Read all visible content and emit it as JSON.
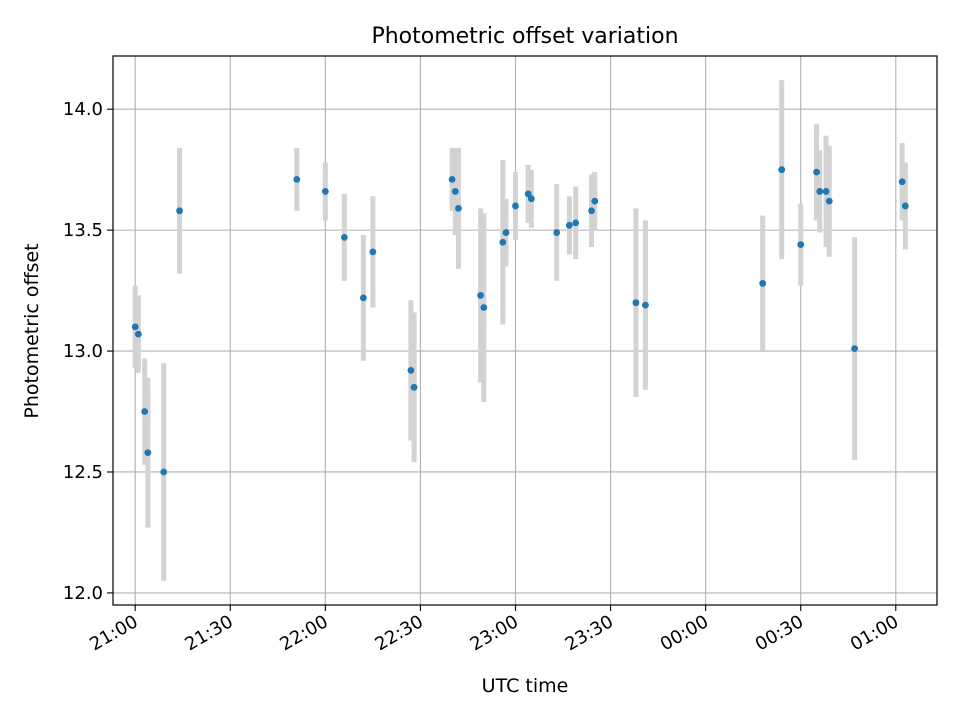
{
  "chart_data": {
    "type": "scatter",
    "title": "Photometric offset variation",
    "xlabel": "UTC time",
    "ylabel": "Photometric offset",
    "x_tick_labels": [
      "21:00",
      "21:30",
      "22:00",
      "22:30",
      "23:00",
      "23:30",
      "00:00",
      "00:30",
      "01:00"
    ],
    "x_ticks": [
      "21:00",
      "21:30",
      "22:00",
      "22:30",
      "23:00",
      "23:30",
      "24:00",
      "24:30",
      "25:00"
    ],
    "y_ticks": [
      "12.0",
      "12.5",
      "13.0",
      "13.5",
      "14.0"
    ],
    "xlim": [
      "20:53",
      "25:13"
    ],
    "ylim": [
      11.95,
      14.22
    ],
    "grid": true,
    "colors": {
      "point": "#1f77b4",
      "errorbar": "#d3d3d3",
      "grid": "#b0b0b0"
    },
    "series": [
      {
        "points": [
          {
            "x": "21:00",
            "y": 13.1,
            "err": 0.17
          },
          {
            "x": "21:01",
            "y": 13.07,
            "err": 0.16
          },
          {
            "x": "21:03",
            "y": 12.75,
            "err": 0.22
          },
          {
            "x": "21:04",
            "y": 12.58,
            "err": 0.31
          },
          {
            "x": "21:09",
            "y": 12.5,
            "err": 0.45
          },
          {
            "x": "21:14",
            "y": 13.58,
            "err": 0.26
          },
          {
            "x": "21:51",
            "y": 13.71,
            "err": 0.13
          },
          {
            "x": "22:00",
            "y": 13.66,
            "err": 0.12
          },
          {
            "x": "22:06",
            "y": 13.47,
            "err": 0.18
          },
          {
            "x": "22:12",
            "y": 13.22,
            "err": 0.26
          },
          {
            "x": "22:15",
            "y": 13.41,
            "err": 0.23
          },
          {
            "x": "22:27",
            "y": 12.92,
            "err": 0.29
          },
          {
            "x": "22:28",
            "y": 12.85,
            "err": 0.31
          },
          {
            "x": "22:40",
            "y": 13.71,
            "err": 0.13
          },
          {
            "x": "22:41",
            "y": 13.66,
            "err": 0.18
          },
          {
            "x": "22:42",
            "y": 13.59,
            "err": 0.25
          },
          {
            "x": "22:49",
            "y": 13.23,
            "err": 0.36
          },
          {
            "x": "22:50",
            "y": 13.18,
            "err": 0.39
          },
          {
            "x": "22:56",
            "y": 13.45,
            "err": 0.34
          },
          {
            "x": "22:57",
            "y": 13.49,
            "err": 0.14
          },
          {
            "x": "23:00",
            "y": 13.6,
            "err": 0.14
          },
          {
            "x": "23:04",
            "y": 13.65,
            "err": 0.12
          },
          {
            "x": "23:05",
            "y": 13.63,
            "err": 0.12
          },
          {
            "x": "23:13",
            "y": 13.49,
            "err": 0.2
          },
          {
            "x": "23:17",
            "y": 13.52,
            "err": 0.12
          },
          {
            "x": "23:19",
            "y": 13.53,
            "err": 0.15
          },
          {
            "x": "23:24",
            "y": 13.58,
            "err": 0.15
          },
          {
            "x": "23:25",
            "y": 13.62,
            "err": 0.12
          },
          {
            "x": "23:38",
            "y": 13.2,
            "err": 0.39
          },
          {
            "x": "23:41",
            "y": 13.19,
            "err": 0.35
          },
          {
            "x": "24:18",
            "y": 13.28,
            "err": 0.28
          },
          {
            "x": "24:24",
            "y": 13.75,
            "err": 0.37
          },
          {
            "x": "24:30",
            "y": 13.44,
            "err": 0.17
          },
          {
            "x": "24:35",
            "y": 13.74,
            "err": 0.2
          },
          {
            "x": "24:36",
            "y": 13.66,
            "err": 0.17
          },
          {
            "x": "24:38",
            "y": 13.66,
            "err": 0.23
          },
          {
            "x": "24:39",
            "y": 13.62,
            "err": 0.23
          },
          {
            "x": "24:47",
            "y": 13.01,
            "err": 0.46
          },
          {
            "x": "25:02",
            "y": 13.7,
            "err": 0.16
          },
          {
            "x": "25:03",
            "y": 13.6,
            "err": 0.18
          }
        ]
      }
    ]
  }
}
